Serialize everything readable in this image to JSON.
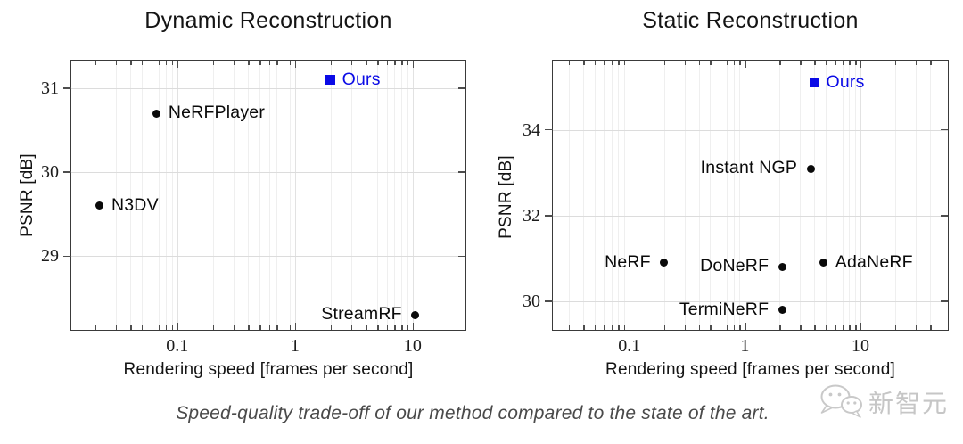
{
  "caption": "Speed-quality trade-off of our method compared to the state of the art.",
  "watermark": {
    "text": "新智元",
    "icon": "wechat-bubbles-icon",
    "color": "#c6c6c6"
  },
  "colors": {
    "ours_blue": "#0b0be6",
    "point_black": "#0a0a0a",
    "frame": "#3a3a3a"
  },
  "chart_data": [
    {
      "type": "scatter",
      "title": "Dynamic Reconstruction",
      "xlabel": "Rendering speed [frames per second]",
      "ylabel": "PSNR [dB]",
      "x_scale": "log",
      "grid": true,
      "legend": "none (labels next to points)",
      "xlim": [
        0.0126,
        29
      ],
      "ylim": [
        28.1,
        31.33
      ],
      "x_ticks": [
        0.1,
        1,
        10
      ],
      "x_tick_labels": [
        "0.1",
        "1",
        "10"
      ],
      "y_ticks": [
        29,
        30,
        31
      ],
      "y_tick_labels": [
        "29",
        "30",
        "31"
      ],
      "points": [
        {
          "label": "Ours",
          "x": 2.0,
          "y": 31.1,
          "marker": "square",
          "color": "#0b0be6",
          "label_side": "right"
        },
        {
          "label": "NeRFPlayer",
          "x": 0.067,
          "y": 30.7,
          "marker": "dot",
          "color": "#0a0a0a",
          "label_side": "right"
        },
        {
          "label": "N3DV",
          "x": 0.022,
          "y": 29.6,
          "marker": "dot",
          "color": "#0a0a0a",
          "label_side": "right"
        },
        {
          "label": "StreamRF",
          "x": 10.5,
          "y": 28.3,
          "marker": "dot",
          "color": "#0a0a0a",
          "label_side": "left"
        }
      ]
    },
    {
      "type": "scatter",
      "title": "Static Reconstruction",
      "xlabel": "Rendering speed [frames per second]",
      "ylabel": "PSNR [dB]",
      "x_scale": "log",
      "grid": true,
      "legend": "none (labels next to points)",
      "xlim": [
        0.0218,
        59
      ],
      "ylim": [
        29.29,
        35.62
      ],
      "x_ticks": [
        0.1,
        1,
        10
      ],
      "x_tick_labels": [
        "0.1",
        "1",
        "10"
      ],
      "y_ticks": [
        30,
        32,
        34
      ],
      "y_tick_labels": [
        "30",
        "32",
        "34"
      ],
      "points": [
        {
          "label": "Ours",
          "x": 4.0,
          "y": 35.1,
          "marker": "square",
          "color": "#0b0be6",
          "label_side": "right"
        },
        {
          "label": "Instant NGP",
          "x": 3.7,
          "y": 33.1,
          "marker": "dot",
          "color": "#0a0a0a",
          "label_side": "left"
        },
        {
          "label": "NeRF",
          "x": 0.2,
          "y": 30.9,
          "marker": "dot",
          "color": "#0a0a0a",
          "label_side": "left"
        },
        {
          "label": "DoNeRF",
          "x": 2.1,
          "y": 30.8,
          "marker": "dot",
          "color": "#0a0a0a",
          "label_side": "left"
        },
        {
          "label": "AdaNeRF",
          "x": 4.8,
          "y": 30.9,
          "marker": "dot",
          "color": "#0a0a0a",
          "label_side": "right"
        },
        {
          "label": "TermiNeRF",
          "x": 2.1,
          "y": 29.8,
          "marker": "dot",
          "color": "#0a0a0a",
          "label_side": "left"
        }
      ]
    }
  ]
}
